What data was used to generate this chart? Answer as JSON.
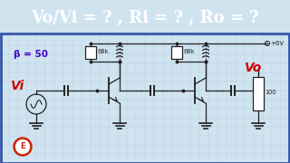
{
  "title": "Vo/Vi = ? , Ri = ? , Ro = ?",
  "title_color": "#ffffff",
  "title_bg": "#3a3a7a",
  "title_fontsize": 13,
  "background_color": "#d0e4f0",
  "grid_color": "#b0cce0",
  "beta_label": "β = 50",
  "beta_color": "#4400cc",
  "vi_label": "Vi",
  "vi_color": "#cc0000",
  "vo_label": "Vo",
  "vo_color": "#cc0000",
  "vcc_label": "+6V",
  "r1_label": "68k",
  "r2_label": "68k",
  "rl_label": "100",
  "border_color": "#3355aa",
  "line_color": "#222222",
  "component_fill": "#ffffff"
}
